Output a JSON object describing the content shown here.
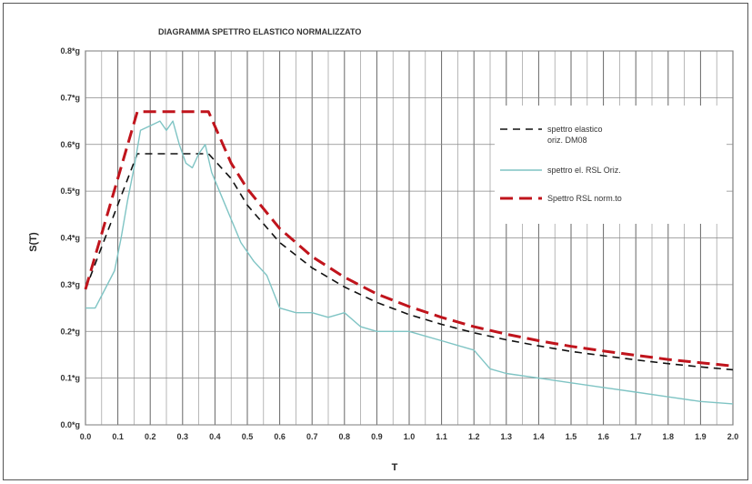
{
  "chart_data": {
    "type": "line",
    "title": "DIAGRAMMA SPETTRO ELASTICO NORMALIZZATO",
    "xlabel": "T",
    "ylabel": "S(T)",
    "xlim": [
      0,
      2.0
    ],
    "ylim": [
      0,
      0.8
    ],
    "x_ticks": [
      "0.0",
      "0.1",
      "0.2",
      "0.3",
      "0.4",
      "0.5",
      "0.6",
      "0.7",
      "0.8",
      "0.9",
      "1.0",
      "1.1",
      "1.2",
      "1.3",
      "1.4",
      "1.5",
      "1.6",
      "1.7",
      "1.8",
      "1.9",
      "2.0"
    ],
    "y_ticks": [
      "0.0*g",
      "0.1*g",
      "0.2*g",
      "0.3*g",
      "0.4*g",
      "0.5*g",
      "0.6*g",
      "0.7*g",
      "0.8*g"
    ],
    "grid": true,
    "legend_position": "right",
    "series": [
      {
        "name": "spettro elastico orizz. DM08",
        "lines": [
          "spettro elastico",
          "oriz. DM08"
        ],
        "color": "#111111",
        "style": "dashed",
        "x": [
          0.0,
          0.16,
          0.38,
          0.45,
          0.5,
          0.6,
          0.7,
          0.8,
          0.9,
          1.0,
          1.1,
          1.2,
          1.3,
          1.4,
          1.5,
          1.6,
          1.7,
          1.8,
          1.9,
          2.0
        ],
        "y": [
          0.29,
          0.58,
          0.58,
          0.527,
          0.47,
          0.39,
          0.336,
          0.295,
          0.262,
          0.236,
          0.215,
          0.197,
          0.182,
          0.169,
          0.157,
          0.148,
          0.139,
          0.131,
          0.124,
          0.118
        ]
      },
      {
        "name": "spettro el. RSL Oriz.",
        "color": "#7fc4c4",
        "style": "solid",
        "x": [
          0.0,
          0.03,
          0.06,
          0.09,
          0.11,
          0.13,
          0.15,
          0.17,
          0.2,
          0.23,
          0.25,
          0.27,
          0.29,
          0.31,
          0.33,
          0.35,
          0.37,
          0.39,
          0.42,
          0.45,
          0.48,
          0.52,
          0.56,
          0.6,
          0.65,
          0.7,
          0.75,
          0.8,
          0.85,
          0.9,
          0.95,
          1.0,
          1.05,
          1.1,
          1.15,
          1.2,
          1.25,
          1.3,
          1.4,
          1.5,
          1.6,
          1.7,
          1.8,
          1.9,
          2.0
        ],
        "y": [
          0.25,
          0.25,
          0.29,
          0.33,
          0.4,
          0.48,
          0.55,
          0.63,
          0.64,
          0.65,
          0.63,
          0.65,
          0.6,
          0.56,
          0.55,
          0.58,
          0.6,
          0.54,
          0.49,
          0.44,
          0.39,
          0.35,
          0.32,
          0.25,
          0.24,
          0.24,
          0.23,
          0.24,
          0.21,
          0.2,
          0.2,
          0.2,
          0.19,
          0.18,
          0.17,
          0.16,
          0.12,
          0.11,
          0.1,
          0.09,
          0.08,
          0.07,
          0.06,
          0.05,
          0.045
        ]
      },
      {
        "name": "Spettro RSL norm.to",
        "color": "#c0141c",
        "style": "dashed",
        "x": [
          0.0,
          0.16,
          0.38,
          0.45,
          0.5,
          0.6,
          0.7,
          0.8,
          0.9,
          1.0,
          1.1,
          1.2,
          1.3,
          1.4,
          1.5,
          1.6,
          1.7,
          1.8,
          1.9,
          2.0
        ],
        "y": [
          0.29,
          0.67,
          0.67,
          0.56,
          0.505,
          0.42,
          0.36,
          0.316,
          0.28,
          0.253,
          0.23,
          0.21,
          0.194,
          0.18,
          0.168,
          0.158,
          0.149,
          0.14,
          0.133,
          0.126
        ]
      }
    ]
  }
}
